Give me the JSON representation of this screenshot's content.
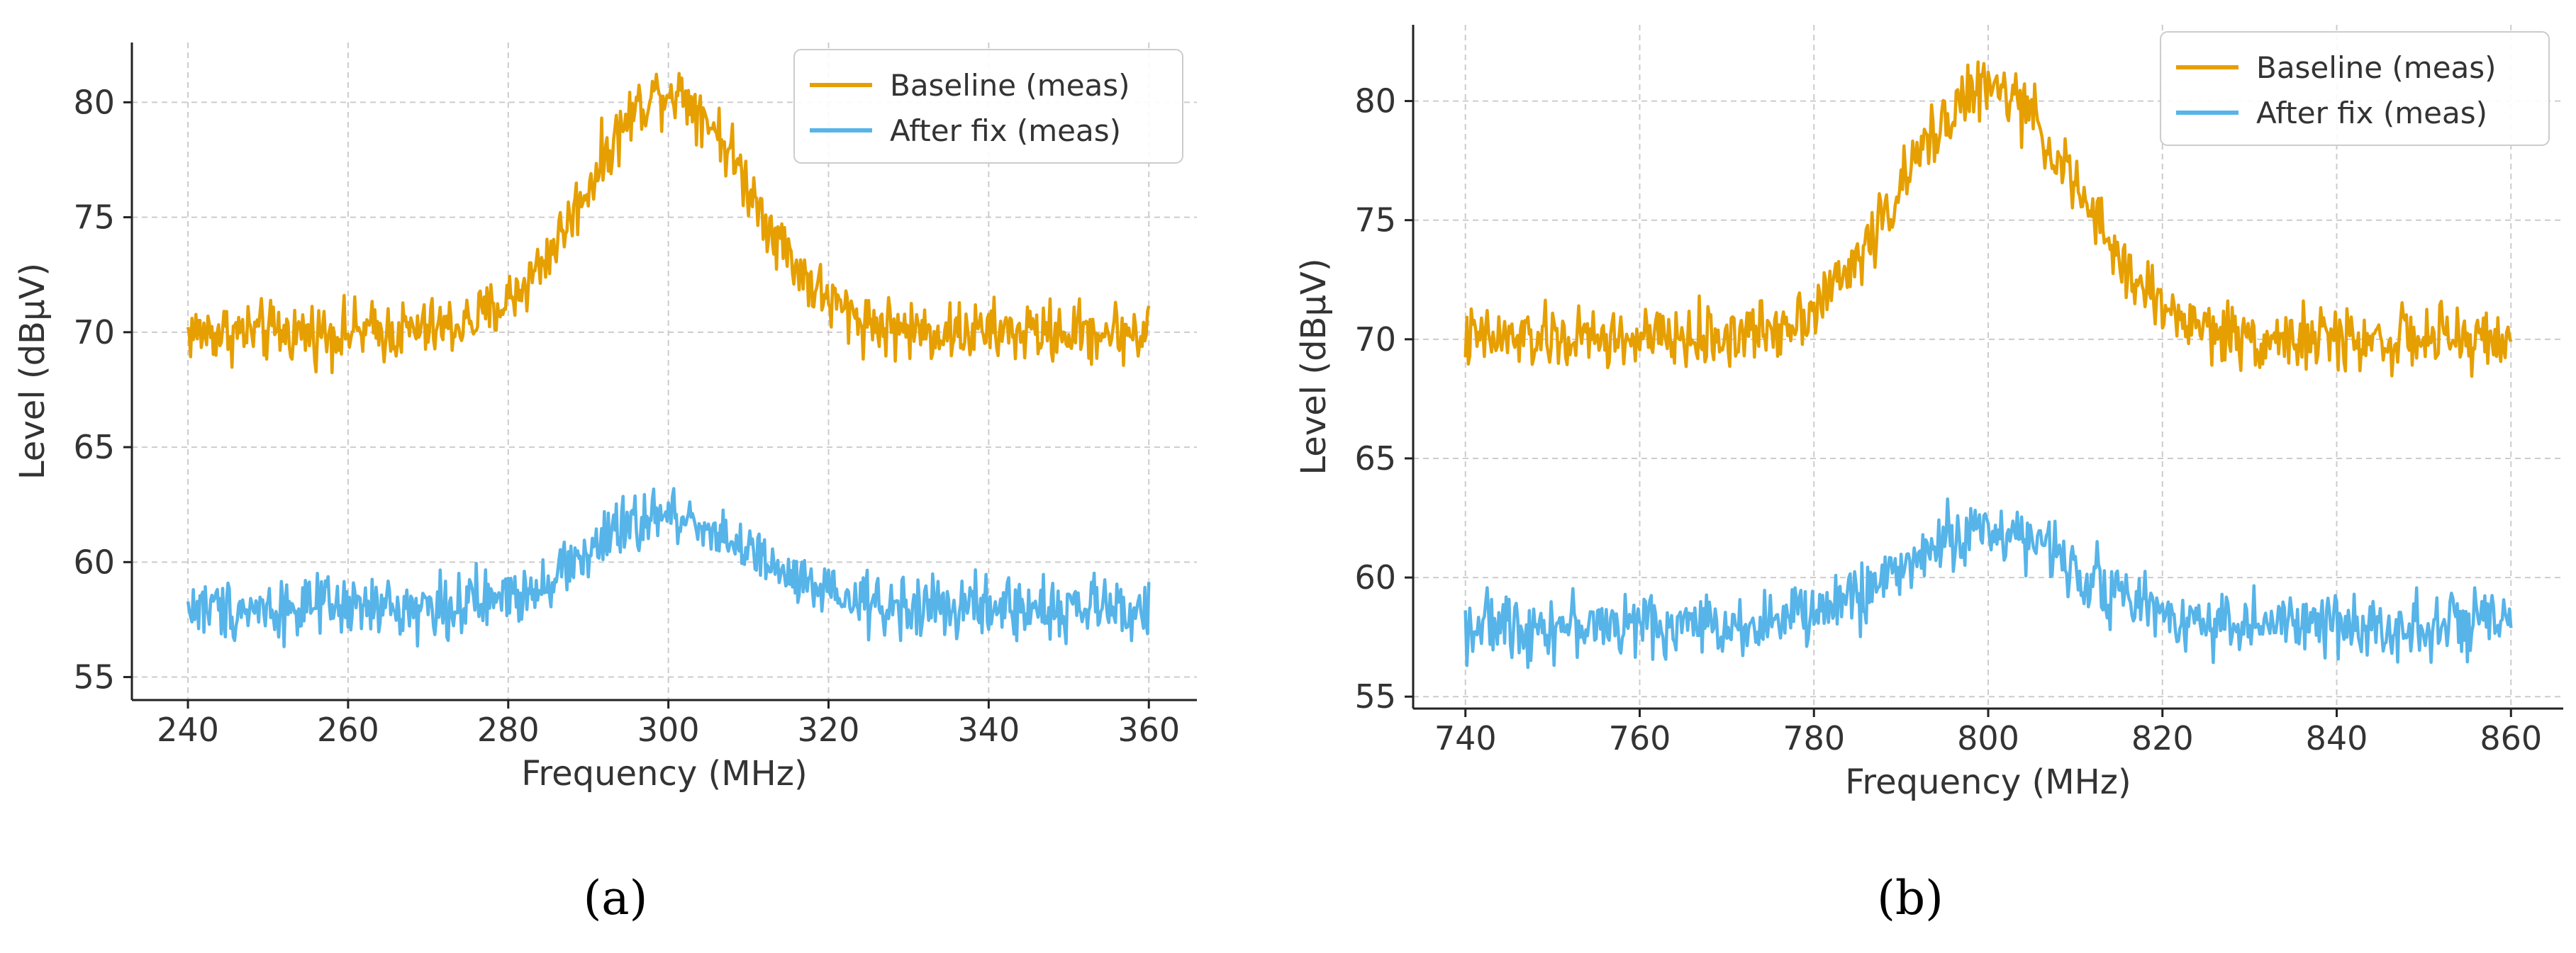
{
  "chart_data": [
    {
      "type": "line",
      "panel_label": "(a)",
      "xlabel": "Frequency (MHz)",
      "ylabel": "Level (dBμV)",
      "xlim": [
        233,
        366
      ],
      "ylim": [
        54,
        82.6
      ],
      "xticks": [
        240,
        260,
        280,
        300,
        320,
        340,
        360
      ],
      "yticks": [
        55,
        60,
        65,
        70,
        75,
        80
      ],
      "tick_labels_x": [
        "240",
        "260",
        "280",
        "300",
        "320",
        "340",
        "360"
      ],
      "tick_labels_y": [
        "55",
        "60",
        "65",
        "70",
        "75",
        "80"
      ],
      "grid": true,
      "legend_position": "top-right",
      "x_range": [
        240,
        360
      ],
      "noise_amplitude_db": 1.3,
      "series": [
        {
          "name": "Baseline (meas)",
          "color": "#E69F00",
          "peak_x": 300,
          "peak_y": 80.5,
          "baseline_y": 70,
          "width_mhz": 10
        },
        {
          "name": "After fix (meas)",
          "color": "#56B4E9",
          "peak_x": 300,
          "peak_y": 62,
          "baseline_y": 58,
          "width_mhz": 10
        }
      ]
    },
    {
      "type": "line",
      "panel_label": "(b)",
      "xlabel": "Frequency (MHz)",
      "ylabel": "Level (dBμV)",
      "xlim": [
        734,
        866
      ],
      "ylim": [
        54.5,
        83.2
      ],
      "xticks": [
        740,
        760,
        780,
        800,
        820,
        840,
        860
      ],
      "yticks": [
        55,
        60,
        65,
        70,
        75,
        80
      ],
      "tick_labels_x": [
        "740",
        "760",
        "780",
        "800",
        "820",
        "840",
        "860"
      ],
      "tick_labels_y": [
        "55",
        "60",
        "65",
        "70",
        "75",
        "80"
      ],
      "grid": true,
      "legend_position": "top-right",
      "x_range": [
        740,
        860
      ],
      "noise_amplitude_db": 1.3,
      "series": [
        {
          "name": "Baseline (meas)",
          "color": "#E69F00",
          "peak_x": 800,
          "peak_y": 80.5,
          "baseline_y": 70,
          "width_mhz": 10
        },
        {
          "name": "After fix (meas)",
          "color": "#56B4E9",
          "peak_x": 800,
          "peak_y": 62,
          "baseline_y": 58,
          "width_mhz": 10
        }
      ]
    }
  ]
}
